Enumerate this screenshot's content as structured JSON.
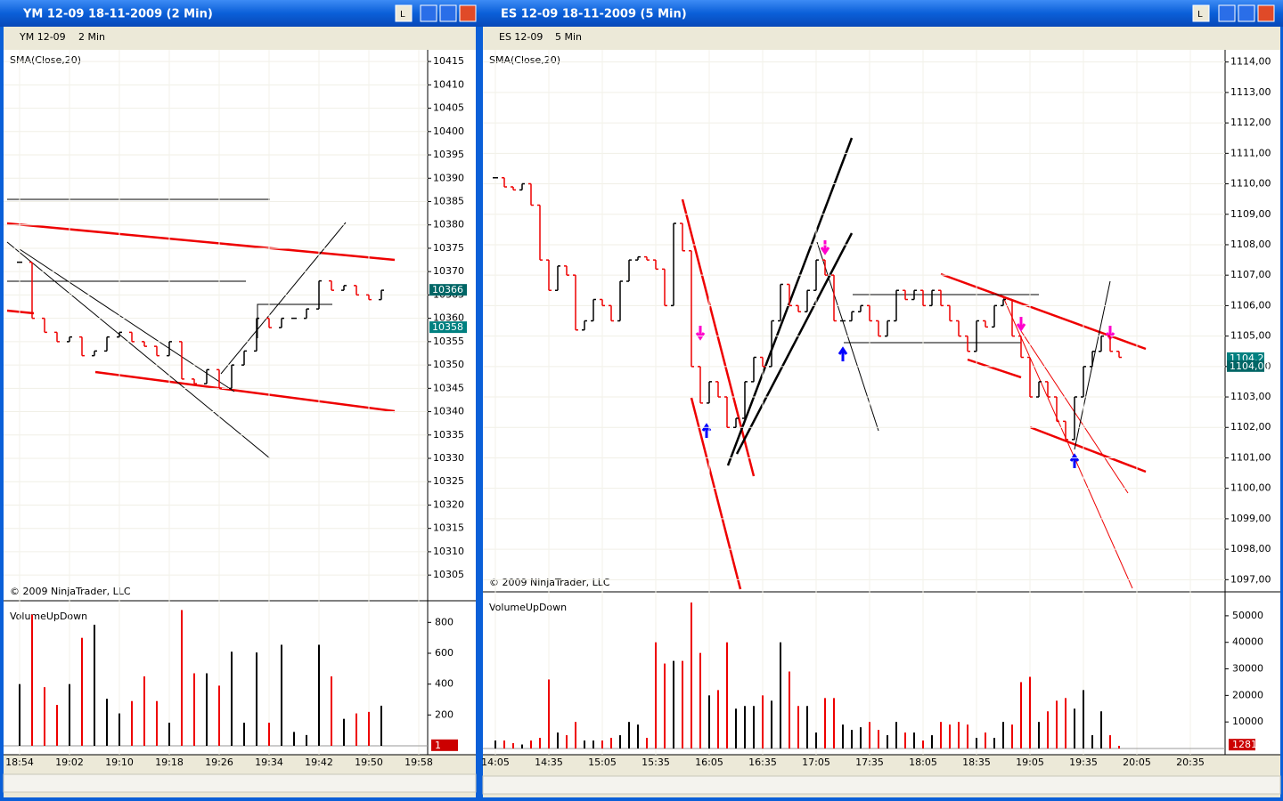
{
  "windows": [
    {
      "title": "YM 12-09  18-11-2009 (2 Min)",
      "instrument": "YM 12-09",
      "interval": "2 Min",
      "indicator": "SMA(Close,20)",
      "copyright": "© 2009 NinjaTrader, LLC",
      "volume_label": "VolumeUpDown",
      "price": {
        "ylim": [
          10299.5,
          10417.5
        ],
        "yticks": [
          10305,
          10310,
          10315,
          10320,
          10325,
          10330,
          10335,
          10340,
          10345,
          10350,
          10355,
          10360,
          10365,
          10370,
          10375,
          10380,
          10385,
          10390,
          10395,
          10400,
          10405,
          10410,
          10415
        ],
        "close": [
          10372,
          10360,
          10357,
          10355,
          10356,
          10352,
          10353,
          10356,
          10357,
          10355,
          10354,
          10352,
          10355,
          10347,
          10346,
          10349,
          10345,
          10350,
          10353,
          10360,
          10358,
          10360,
          10360,
          10362,
          10368,
          10366,
          10367,
          10365,
          10364,
          10366
        ],
        "markers": [
          {
            "value": 10366,
            "label": "10366",
            "color": "#006666"
          },
          {
            "value": 10358,
            "label": "10358",
            "color": "#008080"
          }
        ]
      },
      "volume": {
        "ylim": [
          0,
          900
        ],
        "yticks": [
          200,
          400,
          600,
          800
        ],
        "values": [
          400,
          850,
          380,
          265,
          400,
          700,
          785,
          305,
          210,
          290,
          450,
          290,
          150,
          880,
          470,
          470,
          390,
          610,
          150,
          605,
          150,
          655,
          90,
          70,
          655,
          450,
          175,
          210,
          220,
          260
        ],
        "marker": {
          "value": 1,
          "label": "1"
        }
      },
      "times": [
        "18:54",
        "19:02",
        "19:10",
        "19:18",
        "19:26",
        "19:34",
        "19:42",
        "19:50",
        "19:58"
      ]
    },
    {
      "title": "ES 12-09  18-11-2009 (5 Min)",
      "instrument": "ES 12-09",
      "interval": "5 Min",
      "indicator": "SMA(Close,20)",
      "copyright": "© 2009 NinjaTrader, LLC",
      "volume_label": "VolumeUpDown",
      "price": {
        "ylim": [
          1096.6,
          1114.4
        ],
        "yticks": [
          {
            "value": 1097,
            "label": "1097,00"
          },
          {
            "value": 1098,
            "label": "1098,00"
          },
          {
            "value": 1099,
            "label": "1099,00"
          },
          {
            "value": 1100,
            "label": "1100,00"
          },
          {
            "value": 1101,
            "label": "1101,00"
          },
          {
            "value": 1102,
            "label": "1102,00"
          },
          {
            "value": 1103,
            "label": "1103,00"
          },
          {
            "value": 1104,
            "label": "1104,00"
          },
          {
            "value": 1105,
            "label": "1105,00"
          },
          {
            "value": 1106,
            "label": "1106,00"
          },
          {
            "value": 1107,
            "label": "1107,00"
          },
          {
            "value": 1108,
            "label": "1108,00"
          },
          {
            "value": 1109,
            "label": "1109,00"
          },
          {
            "value": 1110,
            "label": "1110,00"
          },
          {
            "value": 1111,
            "label": "1111,00"
          },
          {
            "value": 1112,
            "label": "1112,00"
          },
          {
            "value": 1113,
            "label": "1113,00"
          },
          {
            "value": 1114,
            "label": "1114,00"
          }
        ],
        "close": [
          1110.2,
          1109.9,
          1109.8,
          1110.0,
          1109.3,
          1107.5,
          1106.5,
          1107.3,
          1107.0,
          1105.2,
          1105.5,
          1106.2,
          1106.0,
          1105.5,
          1106.8,
          1107.5,
          1107.6,
          1107.5,
          1107.2,
          1106.0,
          1108.7,
          1107.8,
          1104.0,
          1102.8,
          1103.5,
          1103.0,
          1102.0,
          1102.3,
          1103.5,
          1104.3,
          1104.0,
          1105.5,
          1106.7,
          1106.0,
          1105.8,
          1106.5,
          1107.5,
          1107.0,
          1105.5,
          1105.5,
          1105.8,
          1106.0,
          1105.5,
          1105.0,
          1105.5,
          1106.5,
          1106.2,
          1106.5,
          1106.0,
          1106.5,
          1106.0,
          1105.5,
          1105.0,
          1104.5,
          1105.5,
          1105.3,
          1106.0,
          1106.2,
          1105.0,
          1104.3,
          1103.0,
          1103.5,
          1103.0,
          1102.2,
          1101.6,
          1103.0,
          1104.0,
          1104.5,
          1105.0,
          1104.5,
          1104.3
        ],
        "markers": [
          {
            "value": 1104.26,
            "label": "1104,26",
            "color": "#008080"
          },
          {
            "value": 1104.0,
            "label": "1104,00",
            "color": "#006666"
          }
        ]
      },
      "volume": {
        "ylim": [
          0,
          56000
        ],
        "yticks": [
          10000,
          20000,
          30000,
          40000,
          50000
        ],
        "values": [
          3000,
          3000,
          2000,
          1500,
          3000,
          4000,
          26000,
          6000,
          5000,
          10000,
          3000,
          3000,
          3000,
          4000,
          5000,
          10000,
          9000,
          4000,
          40000,
          32000,
          33000,
          33000,
          55000,
          36000,
          20000,
          22000,
          40000,
          15000,
          16000,
          16000,
          20000,
          18000,
          40000,
          29000,
          16000,
          16000,
          6000,
          19000,
          19000,
          9000,
          7000,
          8000,
          10000,
          7000,
          5000,
          10000,
          6000,
          6000,
          3000,
          5000,
          10000,
          9000,
          10000,
          9000,
          4000,
          6000,
          4000,
          10000,
          9000,
          25000,
          27000,
          10000,
          14000,
          18000,
          19000,
          15000,
          22000,
          5000,
          14000,
          5000,
          1000
        ],
        "marker": {
          "value": 1281,
          "label": "1281"
        }
      },
      "times": [
        "14:05",
        "14:35",
        "15:05",
        "15:35",
        "16:05",
        "16:35",
        "17:05",
        "17:35",
        "18:05",
        "18:35",
        "19:05",
        "19:35",
        "20:05",
        "20:35"
      ]
    }
  ]
}
